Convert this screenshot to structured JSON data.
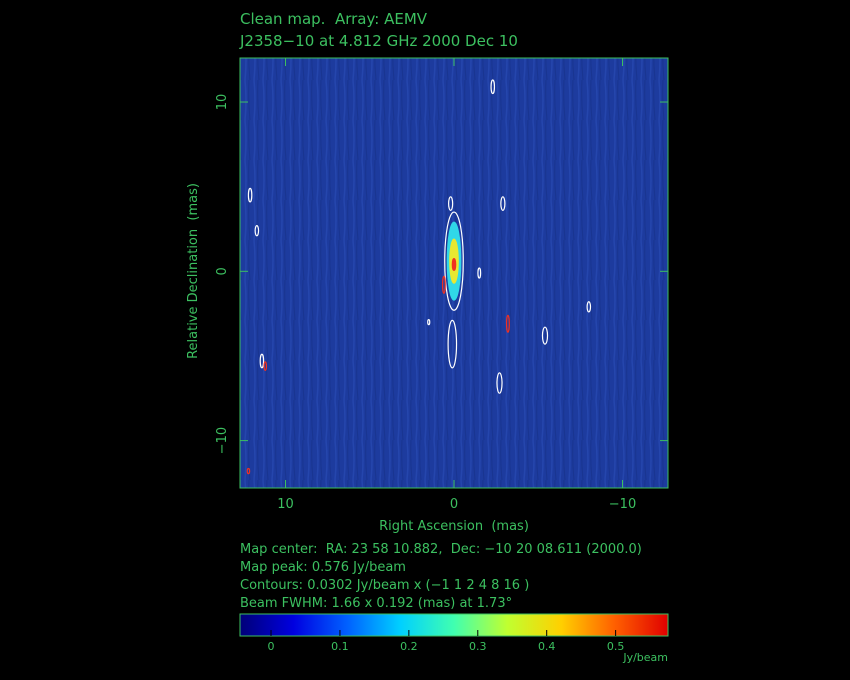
{
  "chart_data": {
    "type": "map",
    "title": "Clean map.  Array: AEMV",
    "subtitle": "J2358−10 at 4.812 GHz 2000 Dec 10",
    "x_label": "Right Ascension  (mas)",
    "y_label": "Relative Declination  (mas)",
    "xlim": [
      12.7,
      -12.7
    ],
    "ylim": [
      -12.8,
      12.6
    ],
    "xticks": [
      10,
      0,
      {
        "value": -10,
        "label": "−10"
      }
    ],
    "yticks": [
      10,
      0,
      {
        "value": -10,
        "label": "−10"
      }
    ],
    "background": "#1d3b9e",
    "frame_color": "#3cc060",
    "features": [
      {
        "x": 0,
        "y": 0.6,
        "sx": 0.55,
        "sy": 2.9,
        "color": "#ffffff"
      },
      {
        "x": 0,
        "y": 0.6,
        "sx": 0.4,
        "sy": 2.3,
        "color": "#30d8e8"
      },
      {
        "x": 0,
        "y": 0.6,
        "sx": 0.25,
        "sy": 1.3,
        "color": "#e8e830"
      },
      {
        "x": 0,
        "y": 0.4,
        "sx": 0.1,
        "sy": 0.35,
        "color": "#f03020"
      },
      {
        "x": -2.3,
        "y": 10.9,
        "sx": 0.1,
        "sy": 0.4,
        "color": "#ffffff"
      },
      {
        "x": 12.1,
        "y": 4.5,
        "sx": 0.1,
        "sy": 0.4,
        "color": "#ffffff"
      },
      {
        "x": 11.7,
        "y": 2.4,
        "sx": 0.1,
        "sy": 0.3,
        "color": "#ffffff"
      },
      {
        "x": 0.2,
        "y": 4.0,
        "sx": 0.12,
        "sy": 0.4,
        "color": "#ffffff"
      },
      {
        "x": -2.9,
        "y": 4.0,
        "sx": 0.12,
        "sy": 0.4,
        "color": "#ffffff"
      },
      {
        "x": -1.5,
        "y": -0.1,
        "sx": 0.08,
        "sy": 0.3,
        "color": "#ffffff"
      },
      {
        "x": -8.0,
        "y": -2.1,
        "sx": 0.1,
        "sy": 0.3,
        "color": "#ffffff"
      },
      {
        "x": -5.4,
        "y": -3.8,
        "sx": 0.15,
        "sy": 0.5,
        "color": "#ffffff"
      },
      {
        "x": 1.5,
        "y": -3.0,
        "sx": 0.06,
        "sy": 0.15,
        "color": "#ffffff"
      },
      {
        "x": 0.1,
        "y": -4.3,
        "sx": 0.25,
        "sy": 1.4,
        "color": "#ffffff"
      },
      {
        "x": 11.4,
        "y": -5.3,
        "sx": 0.1,
        "sy": 0.4,
        "color": "#ffffff"
      },
      {
        "x": -2.7,
        "y": -6.6,
        "sx": 0.15,
        "sy": 0.6,
        "color": "#ffffff"
      },
      {
        "x": 0.6,
        "y": -0.8,
        "sx": 0.08,
        "sy": 0.5,
        "color": "#f03020"
      },
      {
        "x": -3.2,
        "y": -3.1,
        "sx": 0.08,
        "sy": 0.5,
        "color": "#f03020"
      },
      {
        "x": 11.2,
        "y": -5.6,
        "sx": 0.07,
        "sy": 0.25,
        "color": "#f03020"
      },
      {
        "x": 12.2,
        "y": -11.8,
        "sx": 0.07,
        "sy": 0.15,
        "color": "#f03020"
      }
    ],
    "info": [
      "Map center:  RA: 23 58 10.882,  Dec: −10 20 08.611 (2000.0)",
      "Map peak: 0.576 Jy/beam",
      "Contours: 0.0302 Jy/beam x (−1 1 2 4 8 16 )",
      "Beam FWHM: 1.66 x 0.192 (mas) at 1.73°"
    ],
    "colorbar": {
      "clim": [
        -0.045,
        0.576
      ],
      "ticks": [
        0,
        0.1,
        0.2,
        0.3,
        0.4,
        0.5
      ],
      "label": "Jy/beam",
      "colors": [
        "#000078",
        "#0000e0",
        "#0060ff",
        "#00d0ff",
        "#40ffb0",
        "#c0ff30",
        "#ffd000",
        "#ff6000",
        "#e00000"
      ]
    }
  }
}
